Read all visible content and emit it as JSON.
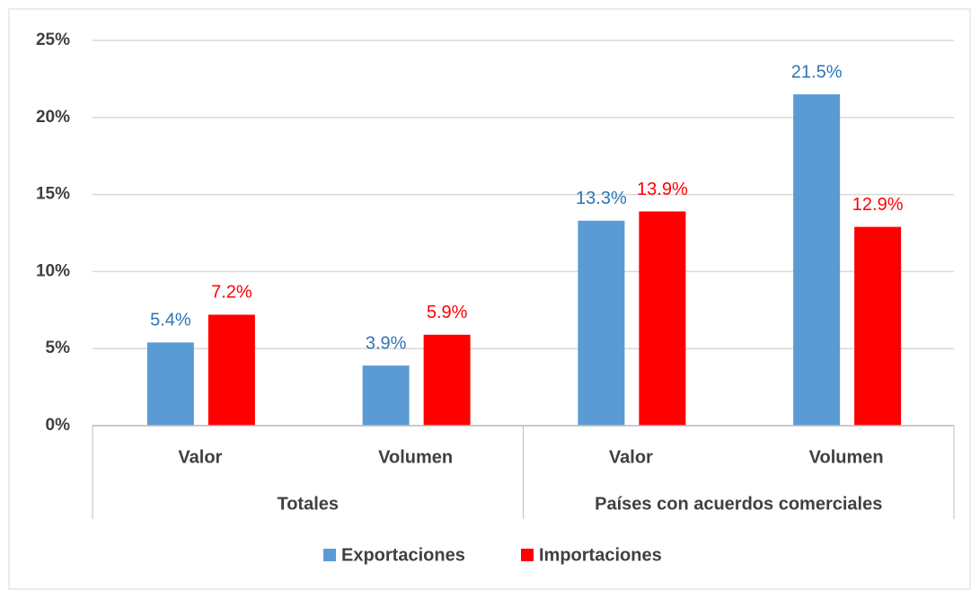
{
  "chart_data": {
    "type": "bar",
    "groups": [
      {
        "name": "Totales",
        "categories": [
          "Valor",
          "Volumen"
        ]
      },
      {
        "name": "Países con acuerdos comerciales",
        "categories": [
          "Valor",
          "Volumen"
        ]
      }
    ],
    "series": [
      {
        "name": "Exportaciones",
        "color": "#5b9bd5",
        "label_color": "#2e75b6",
        "values": [
          5.4,
          3.9,
          13.3,
          21.5
        ],
        "value_labels": [
          "5.4%",
          "3.9%",
          "13.3%",
          "21.5%"
        ]
      },
      {
        "name": "Importaciones",
        "color": "#ff0000",
        "label_color": "#ff0000",
        "values": [
          7.2,
          5.9,
          13.9,
          12.9
        ],
        "value_labels": [
          "7.2%",
          "5.9%",
          "13.9%",
          "12.9%"
        ]
      }
    ],
    "ylim": [
      0,
      25
    ],
    "yticks": [
      {
        "value": 0,
        "label": "0%"
      },
      {
        "value": 5,
        "label": "5%"
      },
      {
        "value": 10,
        "label": "10%"
      },
      {
        "value": 15,
        "label": "15%"
      },
      {
        "value": 20,
        "label": "20%"
      },
      {
        "value": 25,
        "label": "25%"
      }
    ],
    "grid": true,
    "legend": "bottom"
  }
}
